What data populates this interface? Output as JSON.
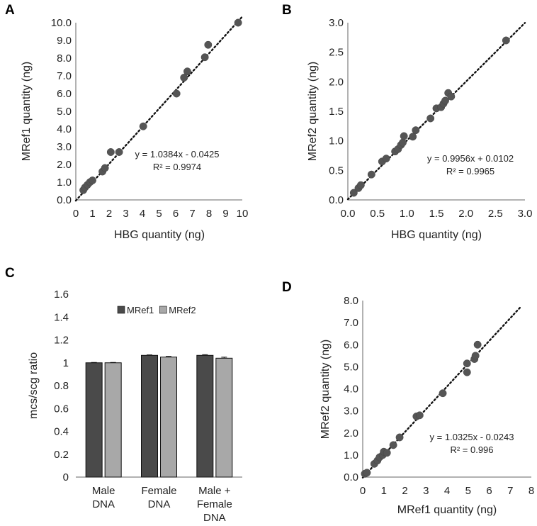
{
  "chart_data": [
    {
      "id": "A",
      "type": "scatter",
      "panel_label": "A",
      "xlabel": "HBG quantity (ng)",
      "ylabel": "MRef1 quantity (ng)",
      "xlim": [
        0,
        10
      ],
      "ylim": [
        0,
        10
      ],
      "xticks": [
        0,
        1,
        2,
        3,
        4,
        5,
        6,
        7,
        8,
        9,
        10
      ],
      "xtick_labels": [
        "0",
        "1",
        "2",
        "3",
        "4",
        "5",
        "6",
        "7",
        "8",
        "9",
        "10"
      ],
      "yticks": [
        0,
        1,
        2,
        3,
        4,
        5,
        6,
        7,
        8,
        9,
        10
      ],
      "ytick_labels": [
        "0.0",
        "1.0",
        "2.0",
        "3.0",
        "4.0",
        "5.0",
        "6.0",
        "7.0",
        "8.0",
        "9.0",
        "10.0"
      ],
      "points": [
        [
          0.45,
          0.55
        ],
        [
          0.55,
          0.7
        ],
        [
          0.7,
          0.85
        ],
        [
          0.85,
          1.0
        ],
        [
          1.0,
          1.1
        ],
        [
          1.6,
          1.6
        ],
        [
          1.75,
          1.8
        ],
        [
          2.1,
          2.7
        ],
        [
          2.6,
          2.7
        ],
        [
          4.05,
          4.15
        ],
        [
          6.05,
          6.0
        ],
        [
          6.5,
          6.9
        ],
        [
          6.7,
          7.25
        ],
        [
          7.75,
          8.05
        ],
        [
          7.95,
          8.75
        ],
        [
          9.75,
          10.0
        ]
      ],
      "trend": {
        "slope": 1.0384,
        "intercept": -0.0425,
        "from": 0,
        "to": 10
      },
      "equation": "y = 1.0384x - 0.0425",
      "r2": "R² = 0.9974"
    },
    {
      "id": "B",
      "type": "scatter",
      "panel_label": "B",
      "xlabel": "HBG quantity (ng)",
      "ylabel": "MRef2 quantity (ng)",
      "xlim": [
        0,
        3
      ],
      "ylim": [
        0,
        3
      ],
      "xticks": [
        0,
        0.5,
        1,
        1.5,
        2,
        2.5,
        3
      ],
      "xtick_labels": [
        "0.0",
        "0.5",
        "1.0",
        "1.5",
        "2.0",
        "2.5",
        "3.0"
      ],
      "yticks": [
        0,
        0.5,
        1,
        1.5,
        2,
        2.5,
        3
      ],
      "ytick_labels": [
        "0.0",
        "0.5",
        "1.0",
        "1.5",
        "2.0",
        "2.5",
        "3.0"
      ],
      "points": [
        [
          0.1,
          0.12
        ],
        [
          0.18,
          0.2
        ],
        [
          0.22,
          0.25
        ],
        [
          0.4,
          0.43
        ],
        [
          0.58,
          0.65
        ],
        [
          0.65,
          0.7
        ],
        [
          0.8,
          0.82
        ],
        [
          0.85,
          0.86
        ],
        [
          0.9,
          0.93
        ],
        [
          0.93,
          0.97
        ],
        [
          0.95,
          1.08
        ],
        [
          1.1,
          1.07
        ],
        [
          1.15,
          1.18
        ],
        [
          1.4,
          1.38
        ],
        [
          1.5,
          1.55
        ],
        [
          1.58,
          1.57
        ],
        [
          1.62,
          1.63
        ],
        [
          1.65,
          1.68
        ],
        [
          1.7,
          1.81
        ],
        [
          1.75,
          1.75
        ],
        [
          2.68,
          2.7
        ]
      ],
      "trend": {
        "slope": 0.9956,
        "intercept": 0.0102,
        "from": 0,
        "to": 3
      },
      "equation": "y = 0.9956x + 0.0102",
      "r2": "R² = 0.9965"
    },
    {
      "id": "C",
      "type": "bar",
      "panel_label": "C",
      "ylabel": "mcs/scg ratio",
      "ylim": [
        0,
        1.6
      ],
      "yticks": [
        0,
        0.2,
        0.4,
        0.6,
        0.8,
        1,
        1.2,
        1.4,
        1.6
      ],
      "ytick_labels": [
        "0",
        "0.2",
        "0.4",
        "0.6",
        "0.8",
        "1",
        "1.2",
        "1.4",
        "1.6"
      ],
      "categories": [
        [
          "Male",
          "DNA"
        ],
        [
          "Female",
          "DNA"
        ],
        [
          "Male +",
          "Female",
          "DNA"
        ]
      ],
      "series": [
        {
          "name": "MRef1",
          "color": "#4a4a4a",
          "values": [
            1.0,
            1.065,
            1.065
          ],
          "errors": [
            0.003,
            0.004,
            0.006
          ]
        },
        {
          "name": "MRef2",
          "color": "#a8a8a8",
          "values": [
            1.0,
            1.05,
            1.04
          ],
          "errors": [
            0.003,
            0.006,
            0.009
          ]
        }
      ]
    },
    {
      "id": "D",
      "type": "scatter",
      "panel_label": "D",
      "xlabel": "MRef1 quantity (ng)",
      "ylabel": "MRef2 quantity (ng)",
      "xlim": [
        0,
        8
      ],
      "ylim": [
        0,
        8
      ],
      "xticks": [
        0,
        1,
        2,
        3,
        4,
        5,
        6,
        7,
        8
      ],
      "xtick_labels": [
        "0",
        "1",
        "2",
        "3",
        "4",
        "5",
        "6",
        "7",
        "8"
      ],
      "yticks": [
        0,
        1,
        2,
        3,
        4,
        5,
        6,
        7,
        8
      ],
      "ytick_labels": [
        "0.0",
        "1.0",
        "2.0",
        "3.0",
        "4.0",
        "5.0",
        "6.0",
        "7.0",
        "8.0"
      ],
      "points": [
        [
          0.1,
          0.15
        ],
        [
          0.2,
          0.2
        ],
        [
          0.55,
          0.6
        ],
        [
          0.7,
          0.75
        ],
        [
          0.8,
          0.9
        ],
        [
          0.95,
          1.0
        ],
        [
          1.0,
          1.15
        ],
        [
          1.15,
          1.1
        ],
        [
          1.45,
          1.45
        ],
        [
          1.75,
          1.8
        ],
        [
          2.55,
          2.75
        ],
        [
          2.7,
          2.8
        ],
        [
          3.8,
          3.8
        ],
        [
          4.95,
          4.75
        ],
        [
          4.95,
          5.15
        ],
        [
          5.3,
          5.35
        ],
        [
          5.35,
          5.5
        ],
        [
          5.45,
          6.0
        ]
      ],
      "trend": {
        "slope": 1.0325,
        "intercept": -0.0243,
        "from": 0,
        "to": 7.5
      },
      "equation": "y = 1.0325x - 0.0243",
      "r2": "R² = 0.996"
    }
  ]
}
